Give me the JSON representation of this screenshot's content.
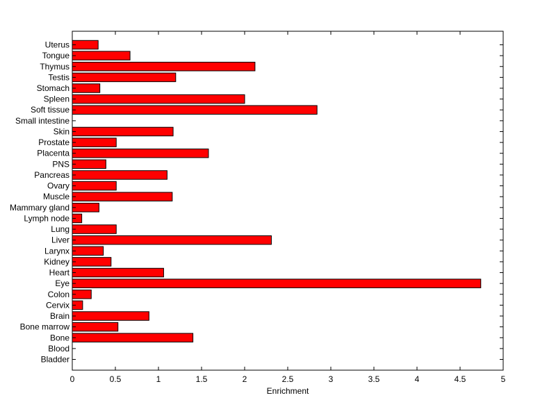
{
  "chart_data": {
    "type": "bar",
    "orientation": "horizontal",
    "title": "",
    "xlabel": "Enrichment",
    "ylabel": "",
    "xlim": [
      0,
      5
    ],
    "xticks": [
      "0",
      "0.5",
      "1",
      "1.5",
      "2",
      "2.5",
      "3",
      "3.5",
      "4",
      "4.5",
      "5"
    ],
    "categories": [
      "Bladder",
      "Blood",
      "Bone",
      "Bone marrow",
      "Brain",
      "Cervix",
      "Colon",
      "Eye",
      "Heart",
      "Kidney",
      "Larynx",
      "Liver",
      "Lung",
      "Lymph node",
      "Mammary gland",
      "Muscle",
      "Ovary",
      "Pancreas",
      "PNS",
      "Placenta",
      "Prostate",
      "Skin",
      "Small intestine",
      "Soft tissue",
      "Spleen",
      "Stomach",
      "Testis",
      "Thymus",
      "Tongue",
      "Uterus"
    ],
    "values": [
      0,
      0,
      1.4,
      0.53,
      0.89,
      0.12,
      0.22,
      4.74,
      1.06,
      0.45,
      0.36,
      2.31,
      0.51,
      0.11,
      0.31,
      1.16,
      0.51,
      1.1,
      0.39,
      1.58,
      0.51,
      1.17,
      0,
      2.84,
      2.0,
      0.32,
      1.2,
      2.12,
      0.67,
      0.3
    ],
    "bar_color": "#ff0000",
    "bar_edge_color": "#000000",
    "grid": false,
    "legend": "none"
  }
}
